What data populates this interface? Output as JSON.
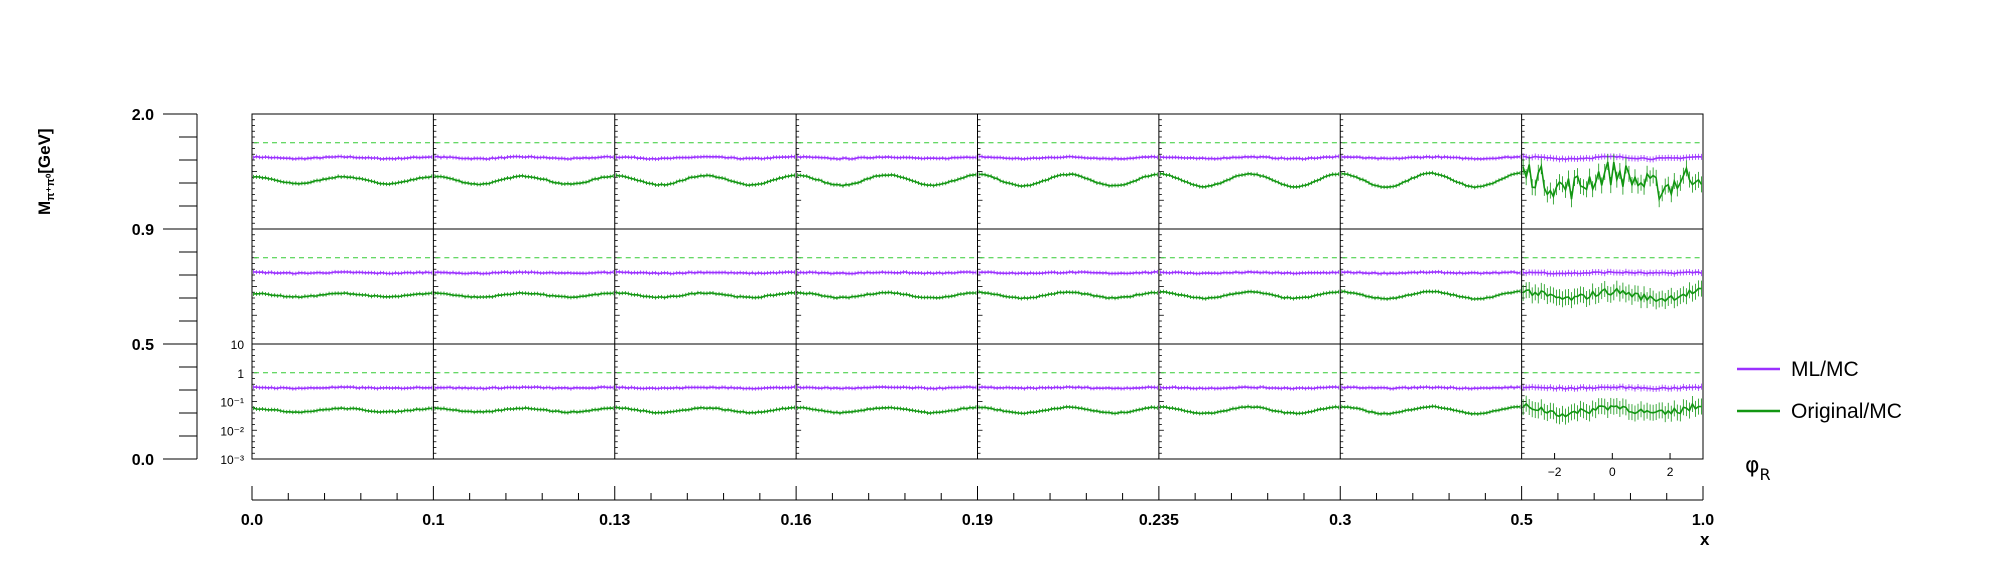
{
  "chart_data": {
    "type": "line",
    "ylabel_main": "M",
    "ylabel_sub": "π⁺π⁰",
    "ylabel_unit": "[GeV]",
    "xlabel": "x",
    "phi_label_main": "φ",
    "phi_label_sub": "R",
    "x_bins": [
      "0.0",
      "0.1",
      "0.13",
      "0.16",
      "0.19",
      "0.235",
      "0.3",
      "0.5",
      "1.0"
    ],
    "m_bins": [
      "0.0",
      "0.5",
      "0.9",
      "2.0"
    ],
    "inner_y_ticks": [
      "10",
      "1",
      "10⁻¹",
      "10⁻²",
      "10⁻³"
    ],
    "inner_y_scale": "log",
    "inner_y_range": [
      0.001,
      10
    ],
    "inner_x_ticks": [
      "−2",
      "0",
      "2"
    ],
    "inner_x_range": [
      -3.14159,
      3.14159
    ],
    "reference_line": 1.0,
    "colors": {
      "ml": "#9b30ff",
      "orig": "#129612",
      "ref": "#33cc33"
    },
    "series": [
      {
        "name": "ML/MC",
        "color": "#9b30ff",
        "ratio_by_mass_row": [
          0.3,
          0.3,
          0.3
        ]
      },
      {
        "name": "Original/MC",
        "color": "#129612",
        "ratio_by_mass_row": [
          0.05,
          0.05,
          0.05
        ]
      }
    ]
  },
  "legend": {
    "ml_label": "ML/MC",
    "orig_label": "Original/MC"
  }
}
